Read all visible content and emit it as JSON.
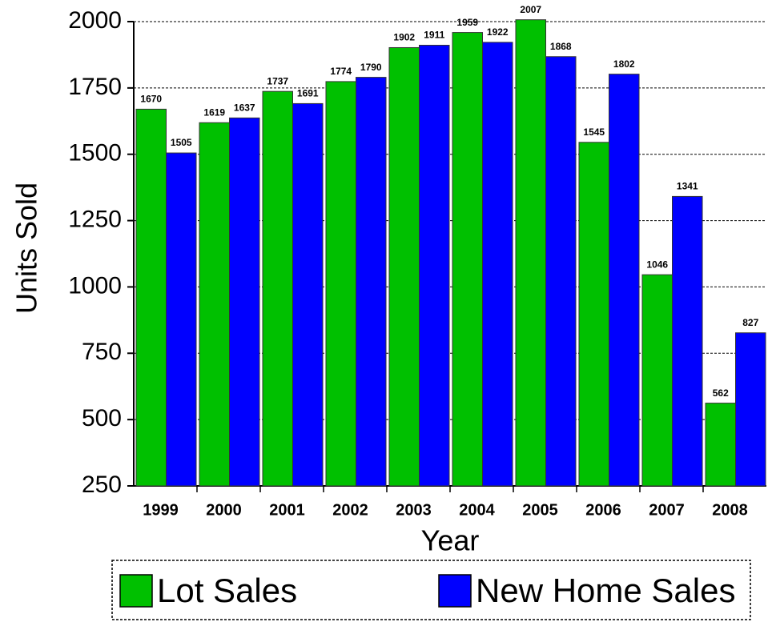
{
  "chart_data": {
    "type": "bar",
    "x_label": "Year",
    "y_label": "Units Sold",
    "categories": [
      "1999",
      "2000",
      "2001",
      "2002",
      "2003",
      "2004",
      "2005",
      "2006",
      "2007",
      "2008"
    ],
    "series": [
      {
        "name": "Lot Sales",
        "color": "#00c000",
        "values": [
          1670,
          1619,
          1737,
          1774,
          1902,
          1959,
          2007,
          1545,
          1046,
          562
        ]
      },
      {
        "name": "New Home Sales",
        "color": "#0000ff",
        "values": [
          1505,
          1637,
          1691,
          1790,
          1911,
          1922,
          1868,
          1802,
          1341,
          827
        ]
      }
    ],
    "ylim": [
      250,
      2000
    ],
    "yticks": [
      250,
      500,
      750,
      1000,
      1250,
      1500,
      1750,
      2000
    ],
    "grid": true,
    "legend": "bottom"
  }
}
